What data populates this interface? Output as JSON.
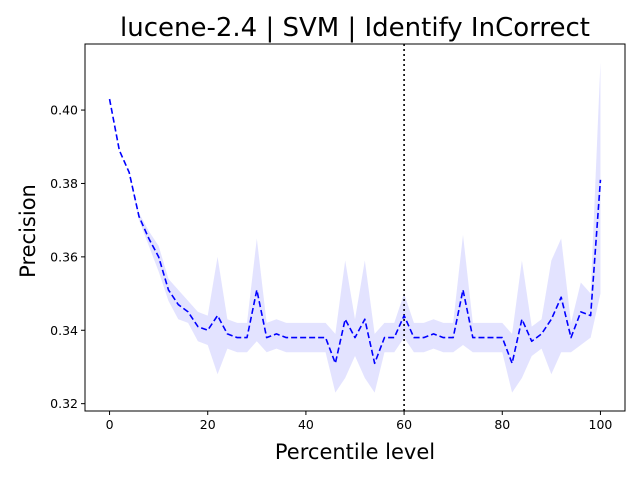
{
  "chart_data": {
    "type": "line",
    "title": "lucene-2.4 | SVM | Identify InCorrect",
    "xlabel": "Percentile level",
    "ylabel": "Precision",
    "xlim": [
      -5,
      105
    ],
    "ylim": [
      0.318,
      0.418
    ],
    "xticks": [
      0,
      20,
      40,
      60,
      80,
      100
    ],
    "yticks": [
      0.32,
      0.34,
      0.36,
      0.38,
      0.4
    ],
    "xtick_labels": [
      "0",
      "20",
      "40",
      "60",
      "80",
      "100"
    ],
    "ytick_labels": [
      "0.32",
      "0.34",
      "0.36",
      "0.38",
      "0.40"
    ],
    "grid": false,
    "vline": {
      "x": 60,
      "style": "dotted",
      "color": "#000000"
    },
    "series": [
      {
        "line_color": "#0000ff",
        "band_color": "#ccccff",
        "line_style": "dashed",
        "x": [
          0,
          2,
          4,
          6,
          8,
          10,
          12,
          14,
          16,
          18,
          20,
          22,
          24,
          26,
          28,
          30,
          32,
          34,
          36,
          38,
          40,
          42,
          44,
          46,
          48,
          50,
          52,
          54,
          56,
          58,
          60,
          62,
          64,
          66,
          68,
          70,
          72,
          74,
          76,
          78,
          80,
          82,
          84,
          86,
          88,
          90,
          92,
          94,
          96,
          98,
          100
        ],
        "y": [
          0.403,
          0.389,
          0.383,
          0.371,
          0.365,
          0.36,
          0.351,
          0.347,
          0.345,
          0.341,
          0.34,
          0.344,
          0.339,
          0.338,
          0.338,
          0.351,
          0.338,
          0.339,
          0.338,
          0.338,
          0.338,
          0.338,
          0.338,
          0.331,
          0.343,
          0.338,
          0.343,
          0.331,
          0.338,
          0.338,
          0.344,
          0.338,
          0.338,
          0.339,
          0.338,
          0.338,
          0.351,
          0.338,
          0.338,
          0.338,
          0.338,
          0.331,
          0.343,
          0.337,
          0.339,
          0.343,
          0.349,
          0.338,
          0.345,
          0.344,
          0.381
        ],
        "lower": [
          0.403,
          0.389,
          0.383,
          0.37,
          0.363,
          0.356,
          0.348,
          0.343,
          0.342,
          0.337,
          0.336,
          0.328,
          0.335,
          0.334,
          0.334,
          0.337,
          0.334,
          0.335,
          0.334,
          0.334,
          0.334,
          0.334,
          0.334,
          0.323,
          0.327,
          0.333,
          0.327,
          0.323,
          0.334,
          0.334,
          0.338,
          0.334,
          0.334,
          0.335,
          0.334,
          0.334,
          0.336,
          0.334,
          0.334,
          0.334,
          0.334,
          0.323,
          0.327,
          0.333,
          0.335,
          0.328,
          0.334,
          0.334,
          0.336,
          0.338,
          0.35
        ],
        "upper": [
          0.403,
          0.389,
          0.383,
          0.372,
          0.367,
          0.363,
          0.354,
          0.351,
          0.348,
          0.345,
          0.344,
          0.36,
          0.343,
          0.342,
          0.342,
          0.365,
          0.342,
          0.343,
          0.342,
          0.342,
          0.342,
          0.342,
          0.342,
          0.339,
          0.359,
          0.343,
          0.359,
          0.339,
          0.342,
          0.342,
          0.35,
          0.342,
          0.342,
          0.343,
          0.342,
          0.342,
          0.366,
          0.342,
          0.342,
          0.342,
          0.342,
          0.339,
          0.359,
          0.341,
          0.343,
          0.359,
          0.365,
          0.342,
          0.353,
          0.35,
          0.413
        ]
      }
    ]
  }
}
